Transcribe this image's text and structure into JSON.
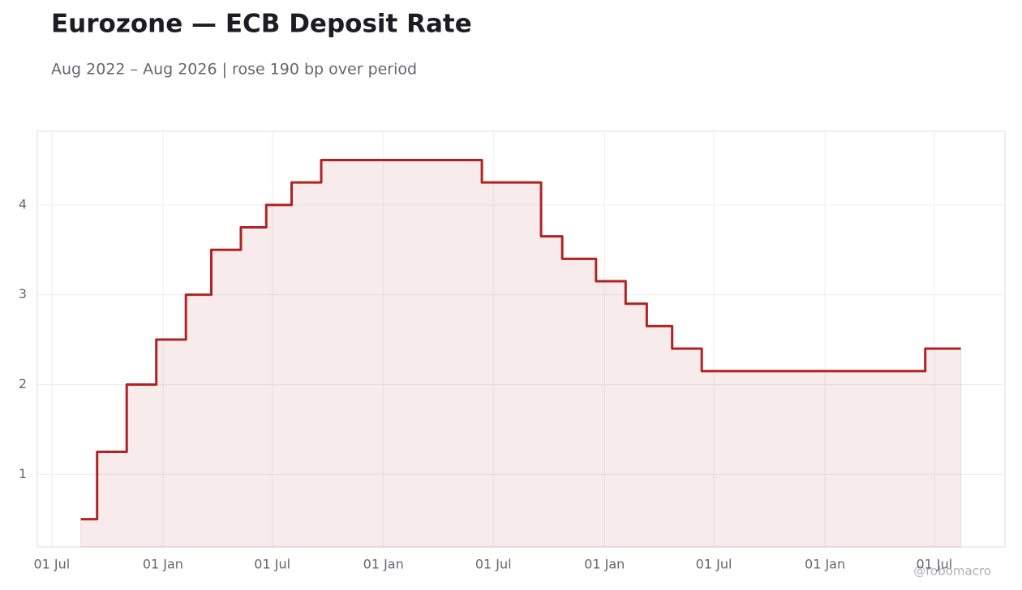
{
  "chart_data": {
    "type": "line",
    "step": "post",
    "title": "Eurozone — ECB Deposit Rate",
    "subtitle": "Aug 2022 – Aug 2026 | rose 190 bp over period",
    "watermark": "@robomacro",
    "x": [
      "2022-08-18",
      "2022-09-14",
      "2022-11-02",
      "2022-12-21",
      "2023-02-08",
      "2023-03-22",
      "2023-05-10",
      "2023-06-21",
      "2023-08-02",
      "2023-09-20",
      "2024-06-12",
      "2024-09-18",
      "2024-10-23",
      "2024-12-18",
      "2025-02-05",
      "2025-03-12",
      "2025-04-23",
      "2025-06-11",
      "2026-06-16",
      "2026-08-14"
    ],
    "series": [
      {
        "name": "Deposit rate",
        "color": "#b22222",
        "values": [
          0.5,
          1.25,
          2,
          2.5,
          3,
          3.5,
          3.75,
          4,
          4.25,
          4.5,
          4.25,
          3.65,
          3.4,
          3.15,
          2.9,
          2.65,
          2.4,
          2.15,
          2.4,
          2.4
        ]
      }
    ],
    "fill": true,
    "xlim": [
      "2022-06-07",
      "2026-10-26"
    ],
    "xticks": [
      {
        "value": "2022-07-01",
        "label": "01 Jul"
      },
      {
        "value": "2023-01-01",
        "label": "01 Jan"
      },
      {
        "value": "2023-07-01",
        "label": "01 Jul"
      },
      {
        "value": "2024-01-01",
        "label": "01 Jan"
      },
      {
        "value": "2024-07-01",
        "label": "01 Jul"
      },
      {
        "value": "2025-01-01",
        "label": "01 Jan"
      },
      {
        "value": "2025-07-01",
        "label": "01 Jul"
      },
      {
        "value": "2026-01-01",
        "label": "01 Jan"
      },
      {
        "value": "2026-07-01",
        "label": "01 Jul"
      }
    ],
    "ylim": [
      0.19,
      4.82
    ],
    "yticks": [
      1,
      2,
      3,
      4
    ],
    "grid": true
  }
}
